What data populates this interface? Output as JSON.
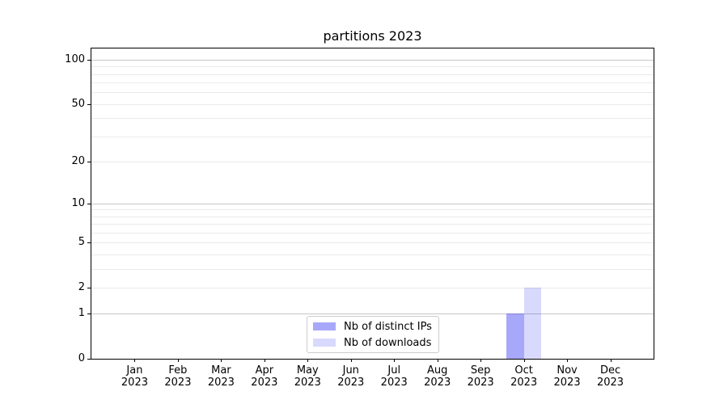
{
  "chart_data": {
    "type": "bar",
    "title": "partitions 2023",
    "categories": [
      "Jan",
      "Feb",
      "Mar",
      "Apr",
      "May",
      "Jun",
      "Jul",
      "Aug",
      "Sep",
      "Oct",
      "Nov",
      "Dec"
    ],
    "year_label": "2023",
    "series": [
      {
        "name": "Nb of distinct IPs",
        "color": "rgba(0,0,240,0.34)",
        "values": [
          0,
          0,
          0,
          0,
          0,
          0,
          0,
          0,
          0,
          1,
          0,
          0
        ]
      },
      {
        "name": "Nb of downloads",
        "color": "rgba(0,0,240,0.15)",
        "values": [
          0,
          0,
          0,
          0,
          0,
          0,
          0,
          0,
          0,
          2,
          0,
          0
        ]
      }
    ],
    "y_axis": {
      "scale": "log1p",
      "tick_values": [
        0,
        1,
        2,
        5,
        10,
        20,
        50,
        100
      ],
      "ylim": [
        0,
        119
      ],
      "grid_major": [
        1,
        10,
        100
      ],
      "grid_minor": [
        2,
        3,
        4,
        5,
        6,
        7,
        8,
        9,
        20,
        30,
        40,
        50,
        60,
        70,
        80,
        90
      ]
    },
    "x_axis": {
      "tick_count": 12
    },
    "legend": {
      "position": "lower-center-inside"
    },
    "bar_width_fraction": 0.4,
    "colors": {
      "grid_major": "#c6c6c6",
      "grid_minor": "#eaeaea",
      "spine": "#000000",
      "text": "#000000",
      "background": "#ffffff"
    }
  }
}
